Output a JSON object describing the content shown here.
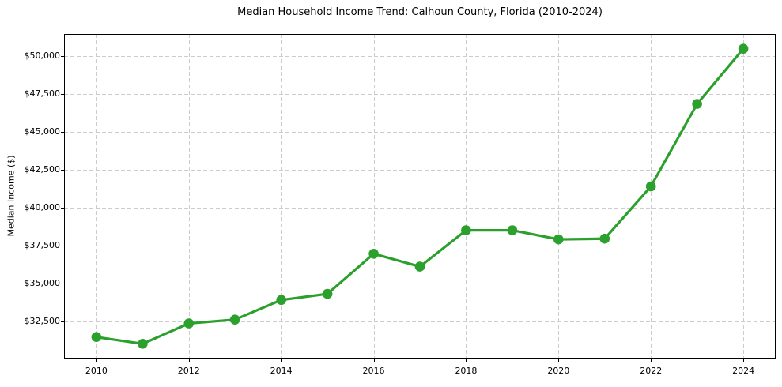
{
  "chart_data": {
    "type": "line",
    "title": "Median Household Income Trend: Calhoun County, Florida (2010-2024)",
    "xlabel": "",
    "ylabel": "Median Income ($)",
    "x": [
      2010,
      2011,
      2012,
      2013,
      2014,
      2015,
      2016,
      2017,
      2018,
      2019,
      2020,
      2021,
      2022,
      2023,
      2024
    ],
    "values": [
      31450,
      31000,
      32350,
      32600,
      33900,
      34300,
      36950,
      36100,
      38500,
      38500,
      37900,
      37950,
      41400,
      46850,
      50500
    ],
    "xlim": [
      2009.3,
      2024.7
    ],
    "ylim": [
      30025,
      51475
    ],
    "x_ticks": [
      2010,
      2012,
      2014,
      2016,
      2018,
      2020,
      2022,
      2024
    ],
    "x_tick_labels": [
      "2010",
      "2012",
      "2014",
      "2016",
      "2018",
      "2020",
      "2022",
      "2024"
    ],
    "y_ticks": [
      32500,
      35000,
      37500,
      40000,
      42500,
      45000,
      47500,
      50000
    ],
    "y_tick_labels": [
      "$32,500",
      "$35,000",
      "$37,500",
      "$40,000",
      "$42,500",
      "$45,000",
      "$47,500",
      "$50,000"
    ],
    "grid": true,
    "grid_style": "dashed",
    "legend": "none",
    "marker": "circle",
    "colors": {
      "line": "#2ca02c",
      "marker": "#2ca02c",
      "grid": "#cccccc",
      "spine": "#000000",
      "text": "#000000"
    }
  }
}
